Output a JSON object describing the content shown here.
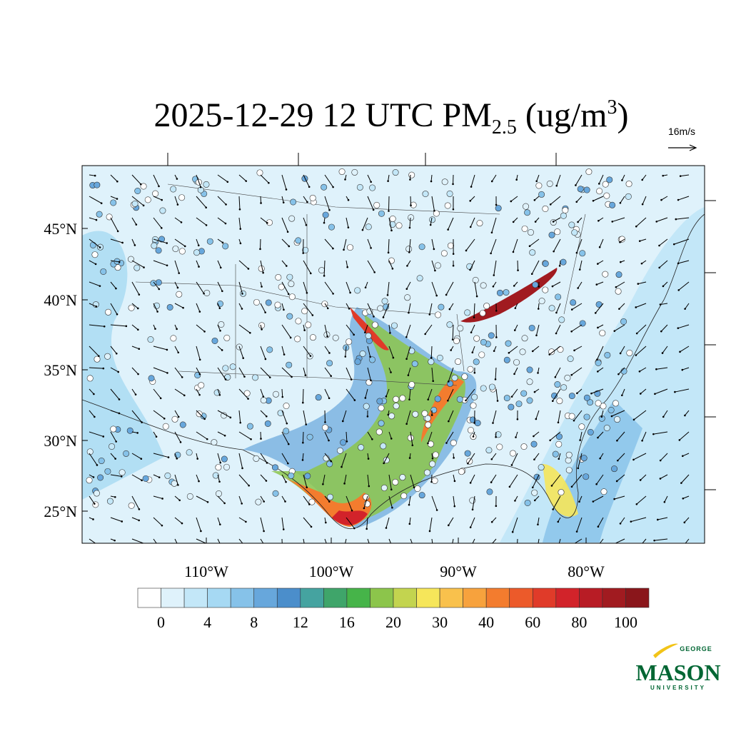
{
  "title": {
    "main": "2025-12-29 12 UTC PM",
    "sub": "2.5",
    "mid": " (ug/m",
    "sup": "3",
    "end": ")"
  },
  "reference_vector": "16m/s",
  "map": {
    "lat_labels": [
      "45°N",
      "40°N",
      "35°N",
      "30°N",
      "25°N"
    ],
    "lon_labels": [
      "110°W",
      "100°W",
      "90°W",
      "80°W"
    ]
  },
  "colorbar": {
    "labels": [
      "0",
      "4",
      "8",
      "12",
      "16",
      "20",
      "30",
      "40",
      "60",
      "80",
      "100"
    ],
    "colors": [
      "#ffffff",
      "#dff2fb",
      "#c3e7f8",
      "#a6d9f3",
      "#86c2e9",
      "#67a7dc",
      "#4b8ecb",
      "#45a3a0",
      "#3fa56a",
      "#46b449",
      "#8cc54b",
      "#c3d44f",
      "#f6e65a",
      "#f9c14c",
      "#f7a23d",
      "#f37c2e",
      "#ec5a2a",
      "#e03b29",
      "#d2232a",
      "#b81c25",
      "#a11b20",
      "#8a161b"
    ]
  },
  "logo": {
    "top": "GEORGE",
    "main": "MASON",
    "bottom": "UNIVERSITY"
  }
}
